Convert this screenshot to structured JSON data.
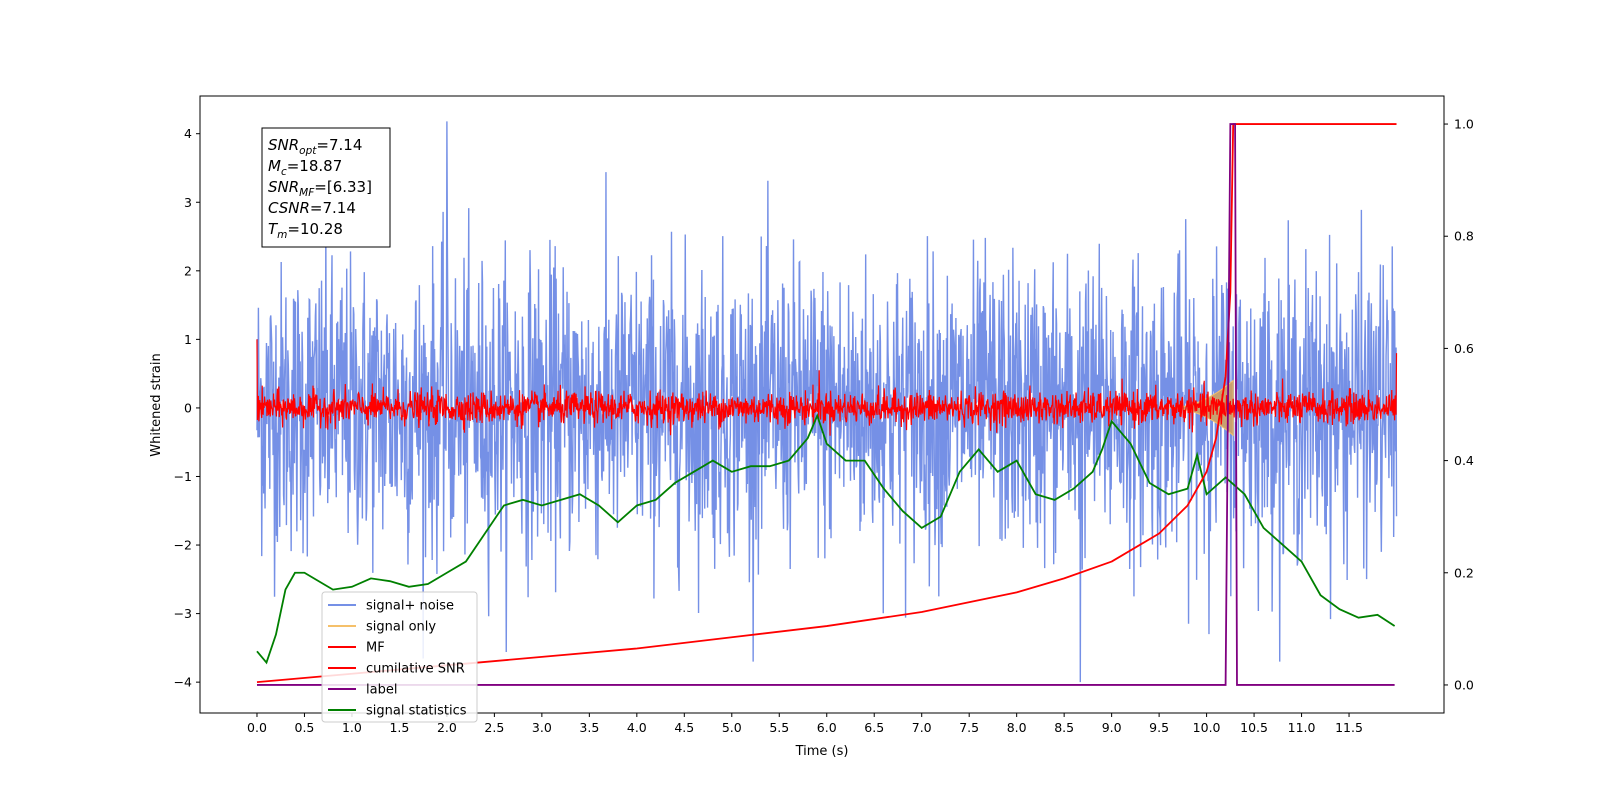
{
  "chart_data": {
    "type": "line",
    "title": "",
    "xlabel": "Time (s)",
    "ylabel": "Whitened strain",
    "xlim": [
      -0.6,
      12.5
    ],
    "ylim_left": [
      -4.45,
      4.55
    ],
    "ylim_right": [
      -0.05,
      1.05
    ],
    "x_ticks": [
      "0.0",
      "0.5",
      "1.0",
      "1.5",
      "2.0",
      "2.5",
      "3.0",
      "3.5",
      "4.0",
      "4.5",
      "5.0",
      "5.5",
      "6.0",
      "6.5",
      "7.0",
      "7.5",
      "8.0",
      "8.5",
      "9.0",
      "9.5",
      "10.0",
      "10.5",
      "11.0",
      "11.5"
    ],
    "y_ticks_left": [
      "4",
      "3",
      "2",
      "1",
      "0",
      "−1",
      "−2",
      "−3",
      "−4"
    ],
    "y_ticks_right": [
      "1.0",
      "0.8",
      "0.6",
      "0.4",
      "0.2",
      "0.0"
    ],
    "grid": false,
    "legend_position": "lower-left",
    "info_box": {
      "lines": [
        {
          "sym": "SNR",
          "sub": "opt",
          "value": "=7.14"
        },
        {
          "sym": "M",
          "sub": "c",
          "value": "=18.87"
        },
        {
          "sym": "SNR",
          "sub": "MF",
          "value": "=[6.33]"
        },
        {
          "sym": "CSNR",
          "sub": "",
          "value": "=7.14"
        },
        {
          "sym": "T",
          "sub": "m",
          "value": "=10.28"
        }
      ]
    },
    "series": [
      {
        "name": "signal+ noise",
        "color": "#7590e6",
        "axis": "left",
        "x_range": [
          0.0,
          12.0
        ],
        "std": 1.0,
        "max": 4.18,
        "min": -4.0
      },
      {
        "name": "signal only",
        "color": "#f5c06a",
        "axis": "left",
        "x_range": [
          0.0,
          10.28
        ],
        "peak_amplitude": 0.4
      },
      {
        "name": "MF",
        "color": "#ff0000",
        "axis": "left",
        "x_range": [
          0.0,
          12.0
        ],
        "std": 0.12,
        "start_value": 1.0,
        "end_value": 0.8
      },
      {
        "name": "cumilative SNR",
        "color": "#ff0000",
        "axis": "right",
        "x": [
          0.0,
          1.0,
          2.0,
          3.0,
          4.0,
          5.0,
          6.0,
          7.0,
          8.0,
          8.5,
          9.0,
          9.5,
          9.8,
          10.0,
          10.1,
          10.2,
          10.25,
          10.28,
          12.0
        ],
        "y": [
          0.005,
          0.02,
          0.035,
          0.05,
          0.065,
          0.085,
          0.105,
          0.13,
          0.165,
          0.19,
          0.22,
          0.27,
          0.32,
          0.38,
          0.44,
          0.55,
          0.7,
          1.0,
          1.0
        ]
      },
      {
        "name": "label",
        "color": "#800080",
        "axis": "right",
        "x": [
          0.0,
          10.2,
          10.25,
          10.3,
          10.32,
          11.0,
          11.98
        ],
        "y": [
          0.0,
          0.0,
          1.0,
          1.0,
          0.0,
          0.0,
          0.0
        ]
      },
      {
        "name": "signal statistics",
        "color": "#008000",
        "axis": "right",
        "x": [
          0.0,
          0.1,
          0.2,
          0.3,
          0.4,
          0.5,
          0.6,
          0.7,
          0.8,
          1.0,
          1.2,
          1.4,
          1.6,
          1.8,
          2.0,
          2.2,
          2.4,
          2.6,
          2.8,
          3.0,
          3.2,
          3.4,
          3.6,
          3.8,
          4.0,
          4.2,
          4.4,
          4.6,
          4.8,
          5.0,
          5.2,
          5.4,
          5.6,
          5.8,
          5.9,
          6.0,
          6.2,
          6.4,
          6.6,
          6.8,
          7.0,
          7.2,
          7.4,
          7.6,
          7.8,
          8.0,
          8.2,
          8.4,
          8.6,
          8.8,
          8.9,
          9.0,
          9.2,
          9.4,
          9.6,
          9.8,
          9.9,
          10.0,
          10.2,
          10.4,
          10.6,
          10.8,
          11.0,
          11.2,
          11.4,
          11.6,
          11.8,
          11.98
        ],
        "y": [
          0.06,
          0.04,
          0.09,
          0.17,
          0.2,
          0.2,
          0.19,
          0.18,
          0.17,
          0.175,
          0.19,
          0.185,
          0.175,
          0.18,
          0.2,
          0.22,
          0.27,
          0.32,
          0.33,
          0.32,
          0.33,
          0.34,
          0.32,
          0.29,
          0.32,
          0.33,
          0.36,
          0.38,
          0.4,
          0.38,
          0.39,
          0.39,
          0.4,
          0.44,
          0.48,
          0.43,
          0.4,
          0.4,
          0.35,
          0.31,
          0.28,
          0.3,
          0.38,
          0.42,
          0.38,
          0.4,
          0.34,
          0.33,
          0.35,
          0.38,
          0.42,
          0.47,
          0.43,
          0.36,
          0.34,
          0.35,
          0.41,
          0.34,
          0.37,
          0.34,
          0.28,
          0.25,
          0.22,
          0.16,
          0.135,
          0.12,
          0.125,
          0.105
        ]
      }
    ]
  }
}
